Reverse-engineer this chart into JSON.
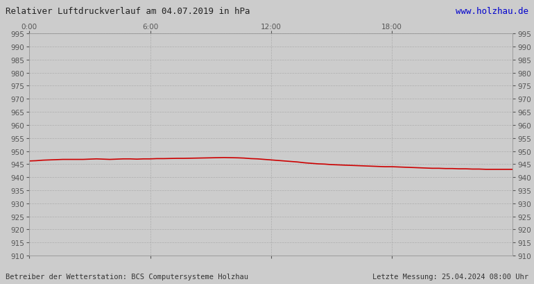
{
  "title": "Relativer Luftdruckverlauf am 04.07.2019 in hPa",
  "title_color": "#222222",
  "url_text": "www.holzhau.de",
  "url_color": "#0000cc",
  "footer_left": "Betreiber der Wetterstation: BCS Computersysteme Holzhau",
  "footer_right": "Letzte Messung: 25.04.2024 08:00 Uhr",
  "footer_color": "#333333",
  "background_color": "#cccccc",
  "plot_bg_color": "#cccccc",
  "grid_color": "#aaaaaa",
  "line_color": "#cc0000",
  "line_width": 1.2,
  "ylim": [
    910,
    995
  ],
  "ytick_step": 5,
  "xlim": [
    0,
    1440
  ],
  "xtick_positions": [
    0,
    360,
    720,
    1080
  ],
  "xtick_labels": [
    "0:00",
    "6:00",
    "12:00",
    "18:00"
  ],
  "pressure_data": [
    [
      0,
      946.2
    ],
    [
      20,
      946.3
    ],
    [
      40,
      946.5
    ],
    [
      60,
      946.6
    ],
    [
      80,
      946.7
    ],
    [
      100,
      946.8
    ],
    [
      120,
      946.8
    ],
    [
      140,
      946.8
    ],
    [
      160,
      946.8
    ],
    [
      180,
      946.9
    ],
    [
      200,
      947.0
    ],
    [
      220,
      946.9
    ],
    [
      240,
      946.8
    ],
    [
      260,
      946.9
    ],
    [
      280,
      947.0
    ],
    [
      300,
      947.0
    ],
    [
      320,
      946.9
    ],
    [
      340,
      947.0
    ],
    [
      360,
      947.0
    ],
    [
      380,
      947.1
    ],
    [
      400,
      947.1
    ],
    [
      420,
      947.15
    ],
    [
      440,
      947.2
    ],
    [
      460,
      947.2
    ],
    [
      480,
      947.25
    ],
    [
      500,
      947.3
    ],
    [
      520,
      947.35
    ],
    [
      540,
      947.4
    ],
    [
      560,
      947.45
    ],
    [
      580,
      947.5
    ],
    [
      600,
      947.45
    ],
    [
      620,
      947.4
    ],
    [
      640,
      947.3
    ],
    [
      660,
      947.1
    ],
    [
      680,
      947.0
    ],
    [
      700,
      946.8
    ],
    [
      720,
      946.6
    ],
    [
      740,
      946.4
    ],
    [
      760,
      946.2
    ],
    [
      780,
      946.0
    ],
    [
      800,
      945.8
    ],
    [
      820,
      945.5
    ],
    [
      840,
      945.3
    ],
    [
      860,
      945.1
    ],
    [
      880,
      945.0
    ],
    [
      900,
      944.8
    ],
    [
      920,
      944.7
    ],
    [
      940,
      944.6
    ],
    [
      960,
      944.5
    ],
    [
      980,
      944.4
    ],
    [
      1000,
      944.3
    ],
    [
      1020,
      944.2
    ],
    [
      1040,
      944.1
    ],
    [
      1060,
      944.0
    ],
    [
      1080,
      944.0
    ],
    [
      1100,
      943.9
    ],
    [
      1120,
      943.8
    ],
    [
      1140,
      943.7
    ],
    [
      1160,
      943.6
    ],
    [
      1180,
      943.5
    ],
    [
      1200,
      943.4
    ],
    [
      1220,
      943.4
    ],
    [
      1240,
      943.3
    ],
    [
      1260,
      943.3
    ],
    [
      1280,
      943.2
    ],
    [
      1300,
      943.2
    ],
    [
      1320,
      943.1
    ],
    [
      1340,
      943.1
    ],
    [
      1360,
      943.0
    ],
    [
      1380,
      943.0
    ],
    [
      1400,
      943.0
    ],
    [
      1420,
      943.0
    ],
    [
      1440,
      943.0
    ]
  ]
}
